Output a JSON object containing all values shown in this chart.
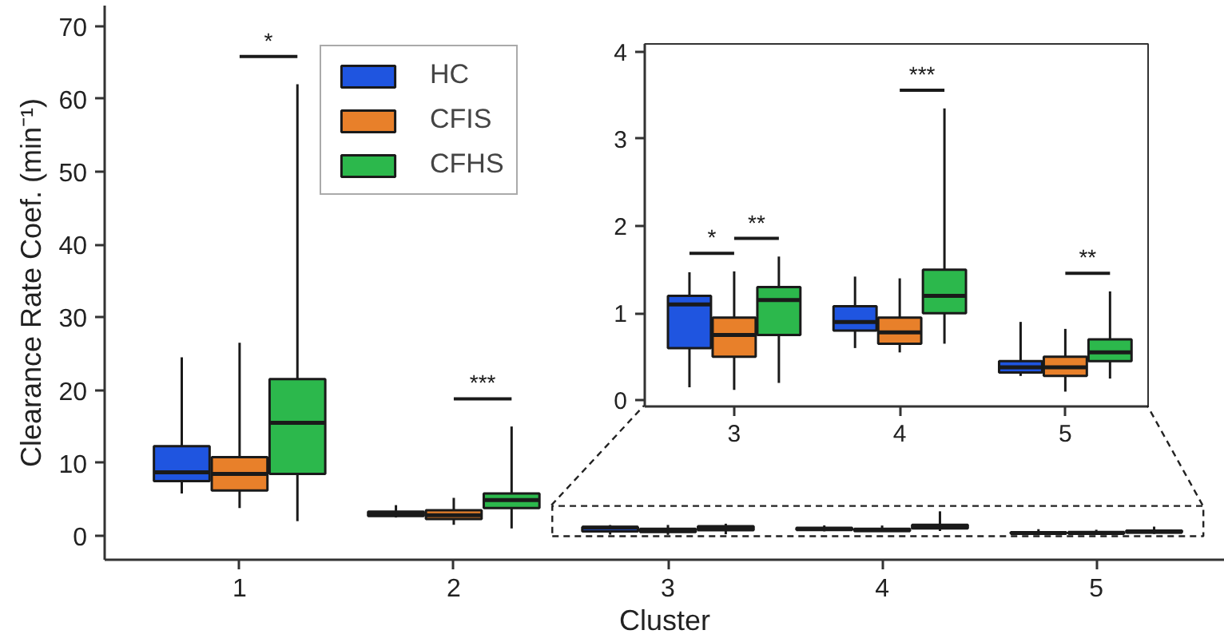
{
  "chart_data": [
    {
      "type": "box",
      "xlabel": "Cluster",
      "ylabel": "Clearance Rate Coef. (min⁻¹)",
      "categories": [
        "1",
        "2",
        "3",
        "4",
        "5"
      ],
      "ylim": [
        -3.3,
        72.8
      ],
      "yticks": [
        0,
        10,
        20,
        30,
        40,
        50,
        60,
        70
      ],
      "legend": "top",
      "grid": false,
      "series": [
        {
          "name": "HC",
          "color": "#1f55e0",
          "boxes": [
            {
              "low": 5.8,
              "q1": 7.5,
              "median": 8.7,
              "q3": 12.3,
              "high": 24.5
            },
            {
              "low": 2.5,
              "q1": 2.7,
              "median": 2.9,
              "q3": 3.3,
              "high": 4.2
            },
            {
              "low": 0.15,
              "q1": 0.6,
              "median": 1.1,
              "q3": 1.2,
              "high": 1.47
            },
            {
              "low": 0.6,
              "q1": 0.8,
              "median": 0.9,
              "q3": 1.08,
              "high": 1.42
            },
            {
              "low": 0.28,
              "q1": 0.32,
              "median": 0.38,
              "q3": 0.45,
              "high": 0.9
            }
          ]
        },
        {
          "name": "CFIS",
          "color": "#e8802a",
          "boxes": [
            {
              "low": 3.8,
              "q1": 6.2,
              "median": 8.5,
              "q3": 10.8,
              "high": 26.5
            },
            {
              "low": 1.5,
              "q1": 2.3,
              "median": 2.8,
              "q3": 3.5,
              "high": 5.2
            },
            {
              "low": 0.12,
              "q1": 0.5,
              "median": 0.75,
              "q3": 0.95,
              "high": 1.48
            },
            {
              "low": 0.55,
              "q1": 0.65,
              "median": 0.78,
              "q3": 0.95,
              "high": 1.4
            },
            {
              "low": 0.1,
              "q1": 0.28,
              "median": 0.38,
              "q3": 0.5,
              "high": 0.82
            }
          ]
        },
        {
          "name": "CFHS",
          "color": "#2cb84c",
          "boxes": [
            {
              "low": 2,
              "q1": 8.5,
              "median": 15.5,
              "q3": 21.5,
              "high": 62
            },
            {
              "low": 1,
              "q1": 3.8,
              "median": 4.9,
              "q3": 5.8,
              "high": 15
            },
            {
              "low": 0.2,
              "q1": 0.75,
              "median": 1.15,
              "q3": 1.3,
              "high": 1.65
            },
            {
              "low": 0.65,
              "q1": 1.0,
              "median": 1.2,
              "q3": 1.5,
              "high": 3.35
            },
            {
              "low": 0.25,
              "q1": 0.45,
              "median": 0.55,
              "q3": 0.7,
              "high": 1.25
            }
          ]
        }
      ],
      "annotations": [
        "*",
        "***"
      ]
    },
    {
      "type": "box",
      "categories": [
        "3",
        "4",
        "5"
      ],
      "ylim": [
        -0.07,
        4.09
      ],
      "yticks": [
        0,
        1,
        2,
        3,
        4
      ],
      "grid": false,
      "series": [
        {
          "color": "#1f55e0",
          "boxes": [
            {
              "low": 0.15,
              "q1": 0.6,
              "median": 1.1,
              "q3": 1.2,
              "high": 1.47
            },
            {
              "low": 0.6,
              "q1": 0.8,
              "median": 0.9,
              "q3": 1.08,
              "high": 1.42
            },
            {
              "low": 0.28,
              "q1": 0.32,
              "median": 0.38,
              "q3": 0.45,
              "high": 0.9
            }
          ]
        },
        {
          "color": "#e8802a",
          "boxes": [
            {
              "low": 0.12,
              "q1": 0.5,
              "median": 0.75,
              "q3": 0.95,
              "high": 1.48
            },
            {
              "low": 0.55,
              "q1": 0.65,
              "median": 0.78,
              "q3": 0.95,
              "high": 1.4
            },
            {
              "low": 0.1,
              "q1": 0.28,
              "median": 0.38,
              "q3": 0.5,
              "high": 0.82
            }
          ]
        },
        {
          "color": "#2cb84c",
          "boxes": [
            {
              "low": 0.2,
              "q1": 0.75,
              "median": 1.15,
              "q3": 1.3,
              "high": 1.65
            },
            {
              "low": 0.65,
              "q1": 1.0,
              "median": 1.2,
              "q3": 1.5,
              "high": 3.35
            },
            {
              "low": 0.25,
              "q1": 0.45,
              "median": 0.55,
              "q3": 0.7,
              "high": 1.25
            }
          ]
        }
      ],
      "annotations": [
        "*",
        "**",
        "***",
        "**"
      ]
    }
  ]
}
